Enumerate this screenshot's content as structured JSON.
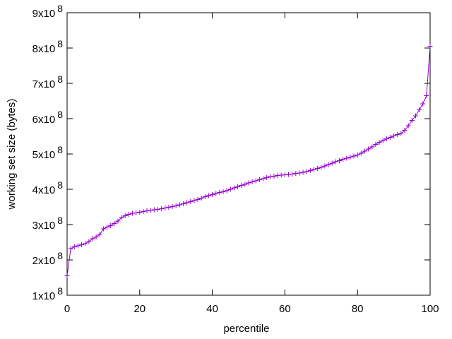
{
  "chart_data": {
    "type": "line",
    "marker": "+",
    "color": "#9400d3",
    "x_label": "percentile",
    "y_label": "working set size (bytes)",
    "x": [
      0,
      1,
      2,
      3,
      4,
      5,
      6,
      7,
      8,
      9,
      10,
      11,
      12,
      13,
      14,
      15,
      16,
      17,
      18,
      19,
      20,
      21,
      22,
      23,
      24,
      25,
      26,
      27,
      28,
      29,
      30,
      31,
      32,
      33,
      34,
      35,
      36,
      37,
      38,
      39,
      40,
      41,
      42,
      43,
      44,
      45,
      46,
      47,
      48,
      49,
      50,
      51,
      52,
      53,
      54,
      55,
      56,
      57,
      58,
      59,
      60,
      61,
      62,
      63,
      64,
      65,
      66,
      67,
      68,
      69,
      70,
      71,
      72,
      73,
      74,
      75,
      76,
      77,
      78,
      79,
      80,
      81,
      82,
      83,
      84,
      85,
      86,
      87,
      88,
      89,
      90,
      91,
      92,
      93,
      94,
      95,
      96,
      97,
      98,
      99,
      100
    ],
    "values": [
      155000000.0,
      232000000.0,
      237000000.0,
      240000000.0,
      243000000.0,
      246000000.0,
      252000000.0,
      260000000.0,
      265000000.0,
      272000000.0,
      288000000.0,
      293000000.0,
      297000000.0,
      303000000.0,
      310000000.0,
      320000000.0,
      325000000.0,
      329000000.0,
      332000000.0,
      333000000.0,
      335000000.0,
      337000000.0,
      339000000.0,
      340000000.0,
      342000000.0,
      343000000.0,
      345000000.0,
      347000000.0,
      349000000.0,
      351000000.0,
      353000000.0,
      356000000.0,
      359000000.0,
      362000000.0,
      365000000.0,
      368000000.0,
      371000000.0,
      375000000.0,
      379000000.0,
      382000000.0,
      385000000.0,
      388000000.0,
      391000000.0,
      393000000.0,
      396000000.0,
      400000000.0,
      404000000.0,
      407000000.0,
      411000000.0,
      414000000.0,
      418000000.0,
      421000000.0,
      424000000.0,
      427000000.0,
      430000000.0,
      433000000.0,
      436000000.0,
      437000000.0,
      439000000.0,
      440000000.0,
      441000000.0,
      442000000.0,
      443000000.0,
      445000000.0,
      446000000.0,
      448000000.0,
      450000000.0,
      453000000.0,
      456000000.0,
      459000000.0,
      462000000.0,
      466000000.0,
      470000000.0,
      474000000.0,
      478000000.0,
      481000000.0,
      485000000.0,
      488000000.0,
      491000000.0,
      494000000.0,
      497000000.0,
      502000000.0,
      508000000.0,
      514000000.0,
      520000000.0,
      527000000.0,
      533000000.0,
      538000000.0,
      543000000.0,
      547000000.0,
      551000000.0,
      555000000.0,
      558000000.0,
      567000000.0,
      580000000.0,
      595000000.0,
      608000000.0,
      625000000.0,
      642000000.0,
      665000000.0,
      805000000.0
    ],
    "xlim": [
      0,
      100
    ],
    "xticks": [
      0,
      20,
      40,
      60,
      80,
      100
    ],
    "ylim": [
      100000000.0,
      900000000.0
    ],
    "yticks": [
      {
        "value": 100000000.0,
        "label": "1x10",
        "sup": "8"
      },
      {
        "value": 200000000.0,
        "label": "2x10",
        "sup": "8"
      },
      {
        "value": 300000000.0,
        "label": "3x10",
        "sup": "8"
      },
      {
        "value": 400000000.0,
        "label": "4x10",
        "sup": "8"
      },
      {
        "value": 500000000.0,
        "label": "5x10",
        "sup": "8"
      },
      {
        "value": 600000000.0,
        "label": "6x10",
        "sup": "8"
      },
      {
        "value": 700000000.0,
        "label": "7x10",
        "sup": "8"
      },
      {
        "value": 800000000.0,
        "label": "8x10",
        "sup": "8"
      },
      {
        "value": 900000000.0,
        "label": "9x10",
        "sup": "8"
      }
    ]
  }
}
